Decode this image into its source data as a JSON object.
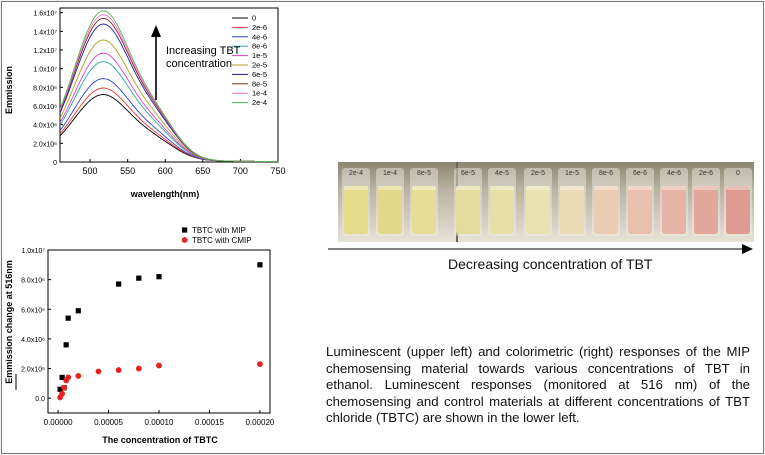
{
  "chart_data": [
    {
      "type": "line",
      "xlabel": "wavelength(nm)",
      "ylabel": "Emmission",
      "xlim": [
        460,
        750
      ],
      "ylim": [
        0,
        16500000
      ],
      "xticks": [
        500,
        550,
        600,
        650,
        700,
        750
      ],
      "xtick_labels": [
        "500",
        "550",
        "600",
        "650",
        "700",
        "750"
      ],
      "yticks": [
        0,
        2000000,
        4000000,
        6000000,
        8000000,
        10000000,
        12000000,
        14000000,
        16000000
      ],
      "ytick_labels": [
        "0",
        "2.0x10⁶",
        "4.0x10⁶",
        "6.0x10⁶",
        "8.0x10⁶",
        "1.0x10⁷",
        "1.2x10⁷",
        "1.4x10⁷",
        "1.6x10⁷"
      ],
      "legend_position": "top-right",
      "annotation": {
        "text_line1": "Increasing TBT",
        "text_line2": "concentration"
      },
      "series": [
        {
          "name": "0",
          "color": "#000000",
          "peak": 6800000
        },
        {
          "name": "2e-6",
          "color": "#e8392c",
          "peak": 7500000
        },
        {
          "name": "4e-6",
          "color": "#3040d0",
          "peak": 8500000
        },
        {
          "name": "8e-6",
          "color": "#2aa8a8",
          "peak": 10300000
        },
        {
          "name": "1e-5",
          "color": "#e040d0",
          "peak": 11200000
        },
        {
          "name": "2e-5",
          "color": "#b0a020",
          "peak": 12600000
        },
        {
          "name": "6e-5",
          "color": "#2020a0",
          "peak": 14300000
        },
        {
          "name": "8e-5",
          "color": "#8b2323",
          "peak": 14900000
        },
        {
          "name": "1e-4",
          "color": "#ff6fcf",
          "peak": 15300000
        },
        {
          "name": "2e-4",
          "color": "#4fb84f",
          "peak": 15700000
        }
      ]
    },
    {
      "type": "scatter",
      "xlabel": "The concentration of TBTC",
      "ylabel": "Emmission change at 516nm",
      "xlim": [
        -1e-05,
        0.00021
      ],
      "ylim": [
        -1000000,
        10000000
      ],
      "xticks": [
        0,
        5e-05,
        0.0001,
        0.00015,
        0.0002
      ],
      "xtick_labels": [
        "0.00000",
        "0.00005",
        "0.00010",
        "0.00015",
        "0.00020"
      ],
      "yticks": [
        0,
        2000000,
        4000000,
        6000000,
        8000000,
        10000000
      ],
      "ytick_labels": [
        "0.0",
        "2.0x10⁶",
        "4.0x10⁶",
        "6.0x10⁶",
        "8.0x10⁶",
        "1.0x10⁷"
      ],
      "legend_position": "top-center",
      "series": [
        {
          "name": "TBTC with MIP",
          "color": "#000000",
          "marker": "square",
          "x": [
            2e-06,
            4e-06,
            6e-06,
            8e-06,
            1e-05,
            2e-05,
            6e-05,
            8e-05,
            0.0001,
            0.0002
          ],
          "y": [
            600000,
            1400000,
            700000,
            3600000,
            5400000,
            5900000,
            7700000,
            8100000,
            8200000,
            9000000
          ]
        },
        {
          "name": "TBTC with CMIP",
          "color": "#e82020",
          "marker": "circle",
          "x": [
            2e-06,
            4e-06,
            6e-06,
            8e-06,
            1e-05,
            2e-05,
            4e-05,
            6e-05,
            8e-05,
            0.0001,
            0.0002
          ],
          "y": [
            50000,
            300000,
            700000,
            1200000,
            1400000,
            1500000,
            1800000,
            1900000,
            2000000,
            2200000,
            2300000
          ]
        }
      ]
    }
  ],
  "photo": {
    "vial_labels": [
      "2e-4",
      "1e-4",
      "8e-5",
      "6e-5",
      "4e-5",
      "2e-5",
      "1e-5",
      "8e-6",
      "6e-6",
      "4e-6",
      "2e-6",
      "0"
    ],
    "vial_colors": [
      "#e4dc8a",
      "#e2da88",
      "#e6de94",
      "#e4dc9c",
      "#e6e0a8",
      "#e8e2b0",
      "#eadbb4",
      "#ebcdb4",
      "#e9bfae",
      "#e6b4a6",
      "#e2a89c",
      "#dc9c92"
    ]
  },
  "arrow_label": "Decreasing concentration of TBT",
  "caption": "Luminescent (upper left) and colorimetric (right) responses of the MIP chemosensing material towards various concentrations of TBT in ethanol. Luminescent responses (monitored at 516 nm) of the chemosensing and control materials at different concentrations of TBT chloride (TBTC) are shown in the lower left."
}
